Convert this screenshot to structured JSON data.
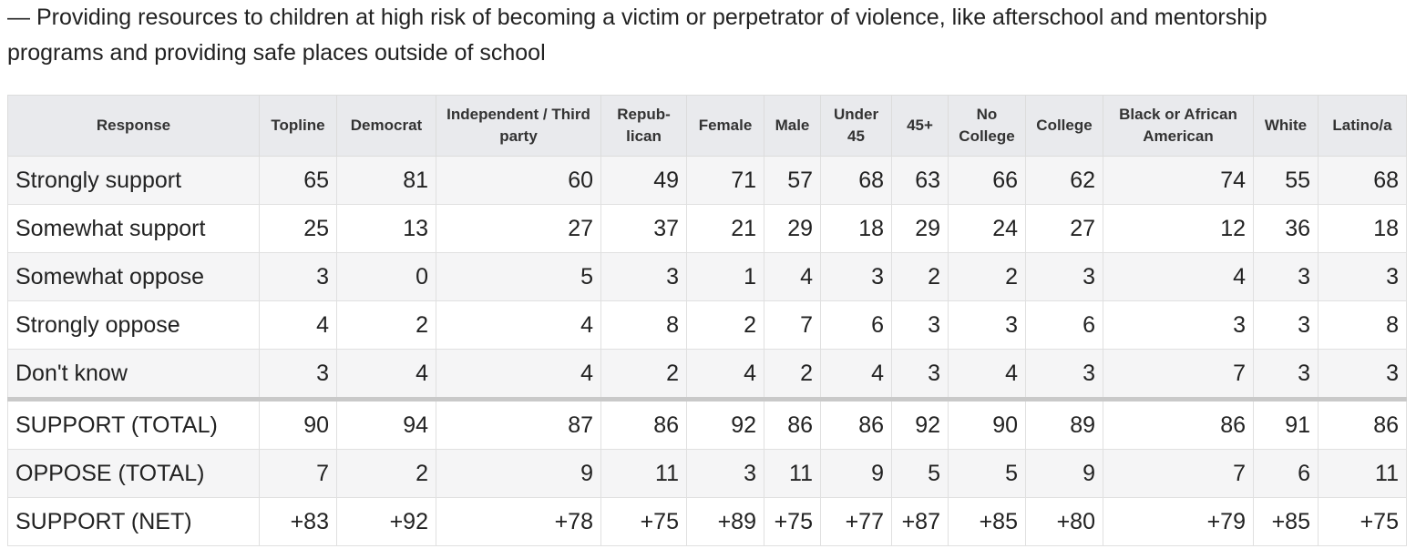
{
  "intro": "— Providing resources to children at high risk of becoming a victim or perpetrator of violence, like afterschool and mentorship programs and providing safe places outside of school",
  "table": {
    "columns": [
      "Response",
      "Topline",
      "Democrat",
      "Independent / Third party",
      "Repub-lican",
      "Female",
      "Male",
      "Under 45",
      "45+",
      "No College",
      "College",
      "Black or African American",
      "White",
      "Latino/a"
    ],
    "rows": [
      [
        "Strongly support",
        65,
        81,
        60,
        49,
        71,
        57,
        68,
        63,
        66,
        62,
        74,
        55,
        68
      ],
      [
        "Somewhat support",
        25,
        13,
        27,
        37,
        21,
        29,
        18,
        29,
        24,
        27,
        12,
        36,
        18
      ],
      [
        "Somewhat oppose",
        3,
        0,
        5,
        3,
        1,
        4,
        3,
        2,
        2,
        3,
        4,
        3,
        3
      ],
      [
        "Strongly oppose",
        4,
        2,
        4,
        8,
        2,
        7,
        6,
        3,
        3,
        6,
        3,
        3,
        8
      ],
      [
        "Don't know",
        3,
        4,
        4,
        2,
        4,
        2,
        4,
        3,
        4,
        3,
        7,
        3,
        3
      ]
    ],
    "summary_rows": [
      [
        "SUPPORT (TOTAL)",
        90,
        94,
        87,
        86,
        92,
        86,
        86,
        92,
        90,
        89,
        86,
        91,
        86
      ],
      [
        "OPPOSE (TOTAL)",
        7,
        2,
        9,
        11,
        3,
        11,
        9,
        5,
        5,
        9,
        7,
        6,
        11
      ],
      [
        "SUPPORT (NET)",
        "+83",
        "+92",
        "+78",
        "+75",
        "+89",
        "+75",
        "+77",
        "+87",
        "+85",
        "+80",
        "+79",
        "+85",
        "+75"
      ]
    ]
  }
}
